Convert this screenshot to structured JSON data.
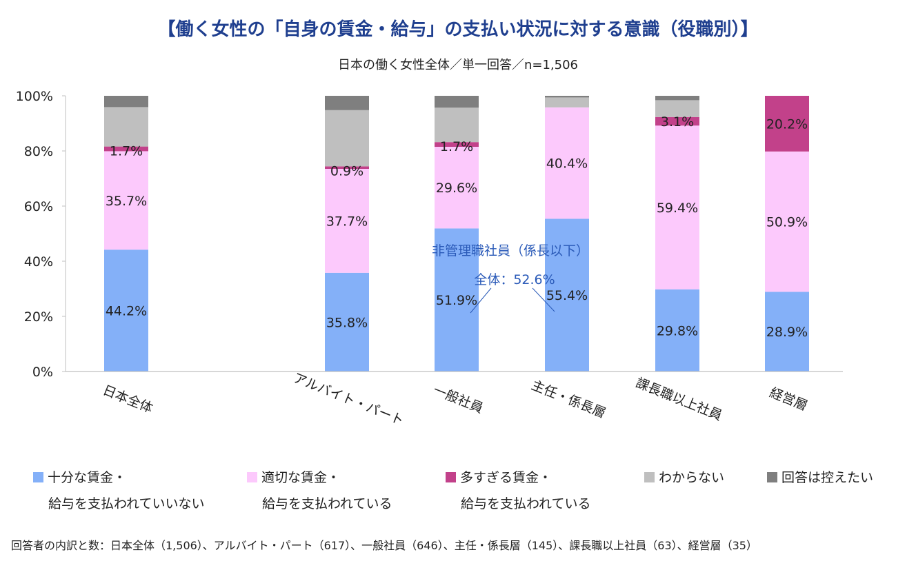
{
  "title": "【働く女性の「自身の賃金・給与」の支払い状況に対する意識（役職別）】",
  "subtitle": "日本の働く女性全体／単一回答／n=1,506",
  "chart_data": {
    "type": "bar",
    "stacked": true,
    "ylim": [
      0,
      100
    ],
    "y_ticks": [
      "0%",
      "20%",
      "40%",
      "60%",
      "80%",
      "100%"
    ],
    "categories": [
      "日本全体",
      "アルバイト・パート",
      "一般社員",
      "主任・係長層",
      "課長職以上社員",
      "経営層"
    ],
    "series": [
      {
        "name": "十分な賃金・給与を支払われていいない",
        "color": "#84b0f8",
        "values": [
          44.2,
          35.8,
          51.9,
          55.4,
          29.8,
          28.9
        ],
        "labels": [
          "44.2%",
          "35.8%",
          "51.9%",
          "55.4%",
          "29.8%",
          "28.9%"
        ]
      },
      {
        "name": "適切な賃金・給与を支払われている",
        "color": "#fcc9fc",
        "values": [
          35.7,
          37.7,
          29.6,
          40.4,
          59.4,
          50.9
        ],
        "labels": [
          "35.7%",
          "37.7%",
          "29.6%",
          "40.4%",
          "59.4%",
          "50.9%"
        ]
      },
      {
        "name": "多すぎる賃金・給与を支払われている",
        "color": "#c2418a",
        "values": [
          1.7,
          0.9,
          1.7,
          0.0,
          3.1,
          20.2
        ],
        "labels": [
          "1.7%",
          "0.9%",
          "1.7%",
          "",
          "3.1%",
          "20.2%"
        ]
      },
      {
        "name": "わからない",
        "color": "#bfbfbf",
        "values": [
          14.3,
          20.4,
          12.5,
          3.6,
          6.1,
          0.0
        ],
        "labels": [
          "",
          "",
          "",
          "",
          "",
          ""
        ]
      },
      {
        "name": "回答は控えたい",
        "color": "#7f7f7f",
        "values": [
          4.1,
          5.2,
          4.3,
          0.6,
          1.6,
          0.0
        ],
        "labels": [
          "",
          "",
          "",
          "",
          "",
          ""
        ]
      }
    ],
    "annotation": {
      "line1": "非管理職社員（係長以下）",
      "line2": "全体：52.6%"
    }
  },
  "legend": [
    {
      "line1": "十分な賃金・",
      "line2": "給与を支払われていいない",
      "color": "#84b0f8"
    },
    {
      "line1": "適切な賃金・",
      "line2": "給与を支払われている",
      "color": "#fcc9fc"
    },
    {
      "line1": "多すぎる賃金・",
      "line2": "給与を支払われている",
      "color": "#c2418a"
    },
    {
      "line1": "わからない",
      "line2": "",
      "color": "#bfbfbf"
    },
    {
      "line1": "回答は控えたい",
      "line2": "",
      "color": "#7f7f7f"
    }
  ],
  "footnote": "回答者の内訳と数：日本全体（1,506）、アルバイト・パート（617）、一般社員（646）、主任・係長層（145）、課長職以上社員（63）、経営層（35）"
}
